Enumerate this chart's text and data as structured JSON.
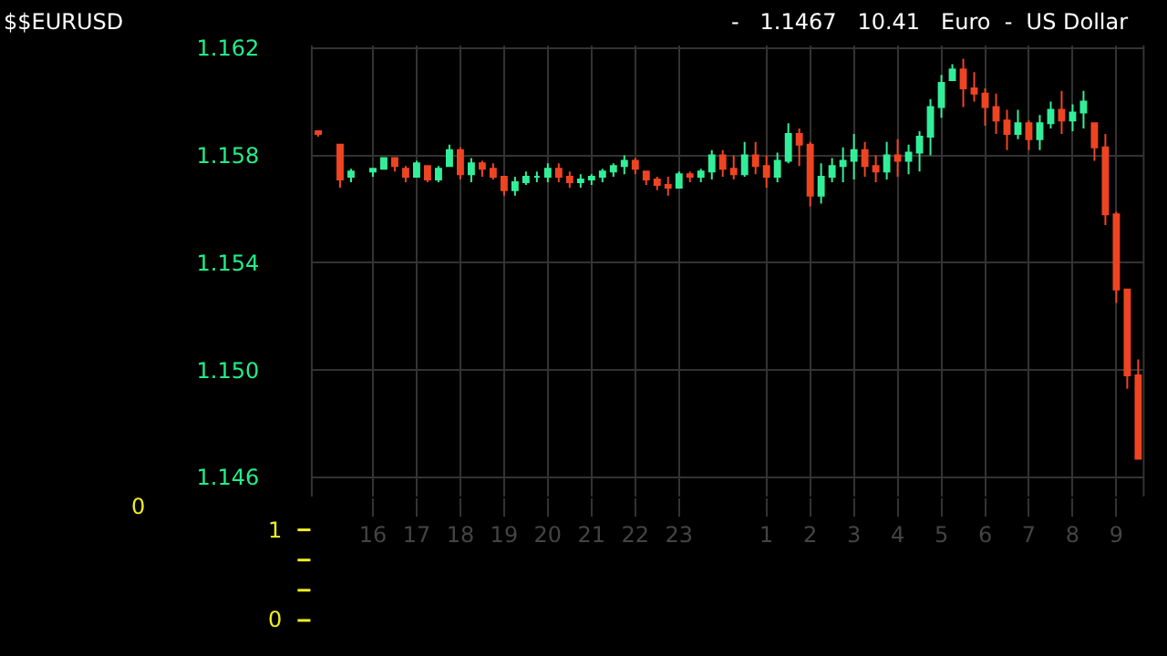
{
  "chart_data": [
    {
      "type": "candlestick",
      "title": "$$EURUSD",
      "subtitle": "-   1.1467   10.41   Euro  -  US Dollar",
      "categories": [
        null,
        null,
        null,
        null,
        null,
        "16",
        null,
        null,
        null,
        "17",
        null,
        null,
        null,
        "18",
        null,
        null,
        null,
        "19",
        null,
        null,
        null,
        "20",
        null,
        null,
        null,
        "21",
        null,
        null,
        null,
        "22",
        null,
        null,
        null,
        "23",
        null,
        null,
        null,
        null,
        null,
        null,
        null,
        "1",
        null,
        null,
        null,
        "2",
        null,
        null,
        null,
        "3",
        null,
        null,
        null,
        "4",
        null,
        null,
        null,
        "5",
        null,
        null,
        null,
        "6",
        null,
        null,
        null,
        "7",
        null,
        null,
        null,
        "8",
        null,
        null,
        null,
        "9",
        null,
        null
      ],
      "colors": [
        "#ee4422",
        null,
        "#ee4422",
        "#33ee99",
        null,
        "#33ee99",
        "#33ee99",
        "#ee4422",
        "#ee4422",
        "#33ee99",
        "#ee4422",
        "#33ee99",
        "#33ee99",
        "#ee4422",
        "#33ee99",
        "#ee4422",
        "#ee4422",
        "#ee4422",
        "#33ee99",
        "#33ee99",
        "#33ee99",
        "#33ee99",
        "#ee4422",
        "#ee4422",
        "#33ee99",
        "#33ee99",
        "#33ee99",
        "#33ee99",
        "#33ee99",
        "#ee4422",
        "#ee4422",
        "#ee4422",
        "#ee4422",
        "#33ee99",
        "#ee4422",
        "#33ee99",
        "#33ee99",
        "#ee4422",
        "#ee4422",
        "#33ee99",
        "#ee4422",
        "#ee4422",
        "#33ee99",
        "#33ee99",
        "#ee4422",
        "#ee4422",
        "#33ee99",
        "#33ee99",
        "#33ee99",
        "#33ee99",
        "#ee4422",
        "#ee4422",
        "#33ee99",
        "#ee4422",
        "#33ee99",
        "#33ee99",
        "#33ee99",
        "#33ee99",
        "#33ee99",
        "#ee4422",
        "#ee4422",
        "#ee4422",
        "#ee4422",
        "#ee4422",
        "#33ee99",
        "#ee4422",
        "#33ee99",
        "#33ee99",
        "#ee4422",
        "#33ee99",
        "#33ee99",
        "#ee4422",
        "#ee4422",
        "#ee4422",
        "#ee4422",
        "#ee4422"
      ],
      "ohlc": [
        [
          1.1589,
          1.1589,
          1.1587,
          1.1588
        ],
        null,
        [
          1.1584,
          1.1584,
          1.1568,
          1.1571
        ],
        [
          1.1572,
          1.1575,
          1.157,
          1.1574
        ],
        null,
        [
          1.1574,
          1.1575,
          1.1572,
          1.1575
        ],
        [
          1.1575,
          1.1579,
          1.1575,
          1.1579
        ],
        [
          1.1579,
          1.1579,
          1.1574,
          1.1576
        ],
        [
          1.1575,
          1.1576,
          1.157,
          1.1572
        ],
        [
          1.1572,
          1.1578,
          1.1572,
          1.1577
        ],
        [
          1.1576,
          1.1576,
          1.157,
          1.1571
        ],
        [
          1.1571,
          1.1576,
          1.157,
          1.1575
        ],
        [
          1.1576,
          1.1584,
          1.1576,
          1.1582
        ],
        [
          1.1582,
          1.1583,
          1.1571,
          1.1573
        ],
        [
          1.1573,
          1.1579,
          1.157,
          1.1577
        ],
        [
          1.1577,
          1.1578,
          1.1572,
          1.1575
        ],
        [
          1.1575,
          1.1577,
          1.1571,
          1.1572
        ],
        [
          1.1572,
          1.1572,
          1.1565,
          1.1567
        ],
        [
          1.1567,
          1.1572,
          1.1565,
          1.157
        ],
        [
          1.157,
          1.1574,
          1.1569,
          1.1572
        ],
        [
          1.1572,
          1.1574,
          1.157,
          1.1572
        ],
        [
          1.1572,
          1.1577,
          1.157,
          1.1575
        ],
        [
          1.1575,
          1.1577,
          1.157,
          1.1572
        ],
        [
          1.1572,
          1.1574,
          1.1568,
          1.157
        ],
        [
          1.157,
          1.1573,
          1.1568,
          1.1571
        ],
        [
          1.1571,
          1.1573,
          1.1569,
          1.1572
        ],
        [
          1.1572,
          1.1575,
          1.157,
          1.1574
        ],
        [
          1.1574,
          1.1577,
          1.1572,
          1.1576
        ],
        [
          1.1576,
          1.158,
          1.1573,
          1.1578
        ],
        [
          1.1578,
          1.1579,
          1.1573,
          1.1575
        ],
        [
          1.1574,
          1.1574,
          1.1569,
          1.1571
        ],
        [
          1.1571,
          1.1572,
          1.1567,
          1.1569
        ],
        [
          1.1569,
          1.1572,
          1.1565,
          1.1568
        ],
        [
          1.1568,
          1.1574,
          1.1568,
          1.1573
        ],
        [
          1.1573,
          1.1574,
          1.157,
          1.1572
        ],
        [
          1.1572,
          1.1575,
          1.157,
          1.1574
        ],
        [
          1.1574,
          1.1582,
          1.1571,
          1.158
        ],
        [
          1.158,
          1.1582,
          1.1572,
          1.1575
        ],
        [
          1.1575,
          1.158,
          1.1571,
          1.1573
        ],
        [
          1.1573,
          1.1585,
          1.1572,
          1.158
        ],
        [
          1.158,
          1.1585,
          1.1573,
          1.1576
        ],
        [
          1.1576,
          1.158,
          1.1568,
          1.1572
        ],
        [
          1.1572,
          1.1581,
          1.157,
          1.1578
        ],
        [
          1.1578,
          1.1592,
          1.1577,
          1.1588
        ],
        [
          1.1588,
          1.159,
          1.1576,
          1.1584
        ],
        [
          1.1584,
          1.1585,
          1.1561,
          1.1565
        ],
        [
          1.1565,
          1.1577,
          1.1562,
          1.1572
        ],
        [
          1.1572,
          1.1579,
          1.157,
          1.1576
        ],
        [
          1.1576,
          1.1583,
          1.157,
          1.1578
        ],
        [
          1.1578,
          1.1588,
          1.1571,
          1.1582
        ],
        [
          1.1582,
          1.1585,
          1.1572,
          1.1576
        ],
        [
          1.1576,
          1.158,
          1.157,
          1.1574
        ],
        [
          1.1574,
          1.1585,
          1.1571,
          1.158
        ],
        [
          1.158,
          1.1586,
          1.1572,
          1.1578
        ],
        [
          1.1578,
          1.1584,
          1.1573,
          1.1581
        ],
        [
          1.1581,
          1.1589,
          1.1574,
          1.1587
        ],
        [
          1.1587,
          1.1601,
          1.158,
          1.1598
        ],
        [
          1.1598,
          1.161,
          1.1594,
          1.1607
        ],
        [
          1.1608,
          1.1614,
          1.1608,
          1.1612
        ],
        [
          1.1612,
          1.1616,
          1.1598,
          1.1605
        ],
        [
          1.1605,
          1.1611,
          1.16,
          1.1603
        ],
        [
          1.1603,
          1.1605,
          1.1591,
          1.1598
        ],
        [
          1.1598,
          1.1603,
          1.1588,
          1.1593
        ],
        [
          1.1593,
          1.1597,
          1.1582,
          1.1588
        ],
        [
          1.1588,
          1.1597,
          1.1586,
          1.1592
        ],
        [
          1.1592,
          1.1593,
          1.1582,
          1.1586
        ],
        [
          1.1586,
          1.1595,
          1.1582,
          1.1592
        ],
        [
          1.1592,
          1.16,
          1.159,
          1.1597
        ],
        [
          1.1597,
          1.1604,
          1.1588,
          1.1593
        ],
        [
          1.1593,
          1.1599,
          1.1589,
          1.1596
        ],
        [
          1.1596,
          1.1604,
          1.159,
          1.16
        ],
        [
          1.1592,
          1.1592,
          1.1578,
          1.1583
        ],
        [
          1.1583,
          1.1588,
          1.1554,
          1.1558
        ],
        [
          1.1558,
          1.1559,
          1.1525,
          1.153
        ],
        [
          1.153,
          1.153,
          1.1493,
          1.1498
        ],
        [
          1.1498,
          1.1504,
          1.1467,
          1.1467
        ]
      ],
      "ylim": [
        1.1453,
        1.1621
      ],
      "yticks": [
        {
          "value": 1.146,
          "label": "1.146"
        },
        {
          "value": 1.15,
          "label": "1.150"
        },
        {
          "value": 1.154,
          "label": "1.154"
        },
        {
          "value": 1.158,
          "label": "1.158"
        },
        {
          "value": 1.162,
          "label": "1.162"
        }
      ],
      "grid": true
    },
    {
      "type": "other",
      "title": "0",
      "annotations": [
        "1",
        "0"
      ]
    }
  ]
}
